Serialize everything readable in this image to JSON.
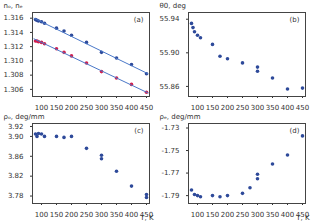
{
  "chart_data": [
    {
      "type": "scatter",
      "title": "(a)",
      "y_label": "nₒ, nₑ",
      "xlim": [
        70,
        460
      ],
      "xticks": [
        100,
        150,
        200,
        250,
        300,
        350,
        400,
        450
      ],
      "ylim": [
        1.305,
        1.3168
      ],
      "yticks": [
        1.306,
        1.308,
        {
          "value": 1.31,
          "label": "1.310"
        },
        1.312,
        1.314,
        1.316
      ],
      "series": [
        {
          "color": "#2e4a9a",
          "marker": "circle",
          "x": [
            80,
            85,
            90,
            100,
            110,
            150,
            175,
            200,
            250,
            300,
            350,
            400,
            450
          ],
          "values": [
            1.3158,
            1.3157,
            1.3156,
            1.3155,
            1.3153,
            1.3146,
            1.3142,
            1.3136,
            1.3126,
            1.3112,
            1.3104,
            1.3095,
            1.3082
          ]
        },
        {
          "color": "#d02050",
          "marker": "circle",
          "x": [
            80,
            85,
            90,
            100,
            110,
            150,
            175,
            200,
            250,
            300,
            350,
            400,
            450
          ],
          "values": [
            1.3128,
            1.3128,
            1.3127,
            1.3126,
            1.3124,
            1.3117,
            1.3112,
            1.3107,
            1.3097,
            1.3085,
            1.3076,
            1.3067,
            1.3056
          ]
        },
        {
          "type": "line",
          "color": "#4a78c8",
          "line_style": "solid",
          "x": [
            75,
            455
          ],
          "values": [
            1.316,
            1.3082
          ]
        },
        {
          "type": "line",
          "color": "#4a78c8",
          "line_style": "solid",
          "x": [
            75,
            455
          ],
          "values": [
            1.3131,
            1.3055
          ]
        }
      ]
    },
    {
      "type": "scatter",
      "title": "(b)",
      "y_label": "θ0, deg",
      "xlim": [
        70,
        460
      ],
      "xticks": [
        100,
        150,
        200,
        250,
        300,
        350,
        400,
        450
      ],
      "ylim": [
        55.848,
        55.948
      ],
      "yticks": [
        55.86,
        {
          "value": 55.9,
          "label": "55.90"
        },
        55.94
      ],
      "series": [
        {
          "color": "#2e4a9a",
          "marker": "circle",
          "x": [
            80,
            85,
            90,
            100,
            110,
            150,
            175,
            200,
            250,
            300,
            300,
            350,
            400,
            450
          ],
          "values": [
            55.935,
            55.93,
            55.925,
            55.921,
            55.918,
            55.91,
            55.896,
            55.893,
            55.888,
            55.883,
            55.878,
            55.87,
            55.857,
            55.858
          ]
        }
      ]
    },
    {
      "type": "scatter",
      "title": "(c)",
      "y_label": "ρₒ, deg/mm",
      "x_label": "T, K",
      "xlim": [
        70,
        460
      ],
      "xticks": [
        100,
        150,
        200,
        250,
        300,
        350,
        400,
        450
      ],
      "ylim": [
        3.765,
        3.926
      ],
      "yticks": [
        3.78,
        3.82,
        3.86,
        {
          "value": 3.9,
          "label": "3.90"
        },
        3.92
      ],
      "series": [
        {
          "color": "#2e4a9a",
          "marker": "circle",
          "x": [
            80,
            85,
            90,
            100,
            110,
            150,
            175,
            200,
            250,
            300,
            300,
            350,
            400,
            450,
            450
          ],
          "values": [
            3.905,
            3.9,
            3.906,
            3.905,
            3.9,
            3.9,
            3.898,
            3.9,
            3.876,
            3.862,
            3.855,
            3.83,
            3.8,
            3.783,
            3.777
          ]
        }
      ]
    },
    {
      "type": "scatter",
      "title": "(d)",
      "y_label": "ρₑ, deg/mm",
      "x_label": "T, K",
      "xlim": [
        70,
        460
      ],
      "xticks": [
        100,
        150,
        200,
        250,
        300,
        350,
        400,
        450
      ],
      "ylim": [
        -1.797,
        -1.726
      ],
      "yticks": [
        -1.79,
        -1.77,
        -1.75,
        -1.73
      ],
      "series": [
        {
          "color": "#2e4a9a",
          "marker": "circle",
          "x": [
            80,
            90,
            100,
            110,
            150,
            175,
            200,
            250,
            275,
            300,
            300,
            350,
            400,
            450
          ],
          "values": [
            -1.785,
            -1.789,
            -1.79,
            -1.791,
            -1.79,
            -1.791,
            -1.79,
            -1.788,
            -1.783,
            -1.775,
            -1.771,
            -1.762,
            -1.754,
            -1.737
          ]
        }
      ]
    }
  ]
}
